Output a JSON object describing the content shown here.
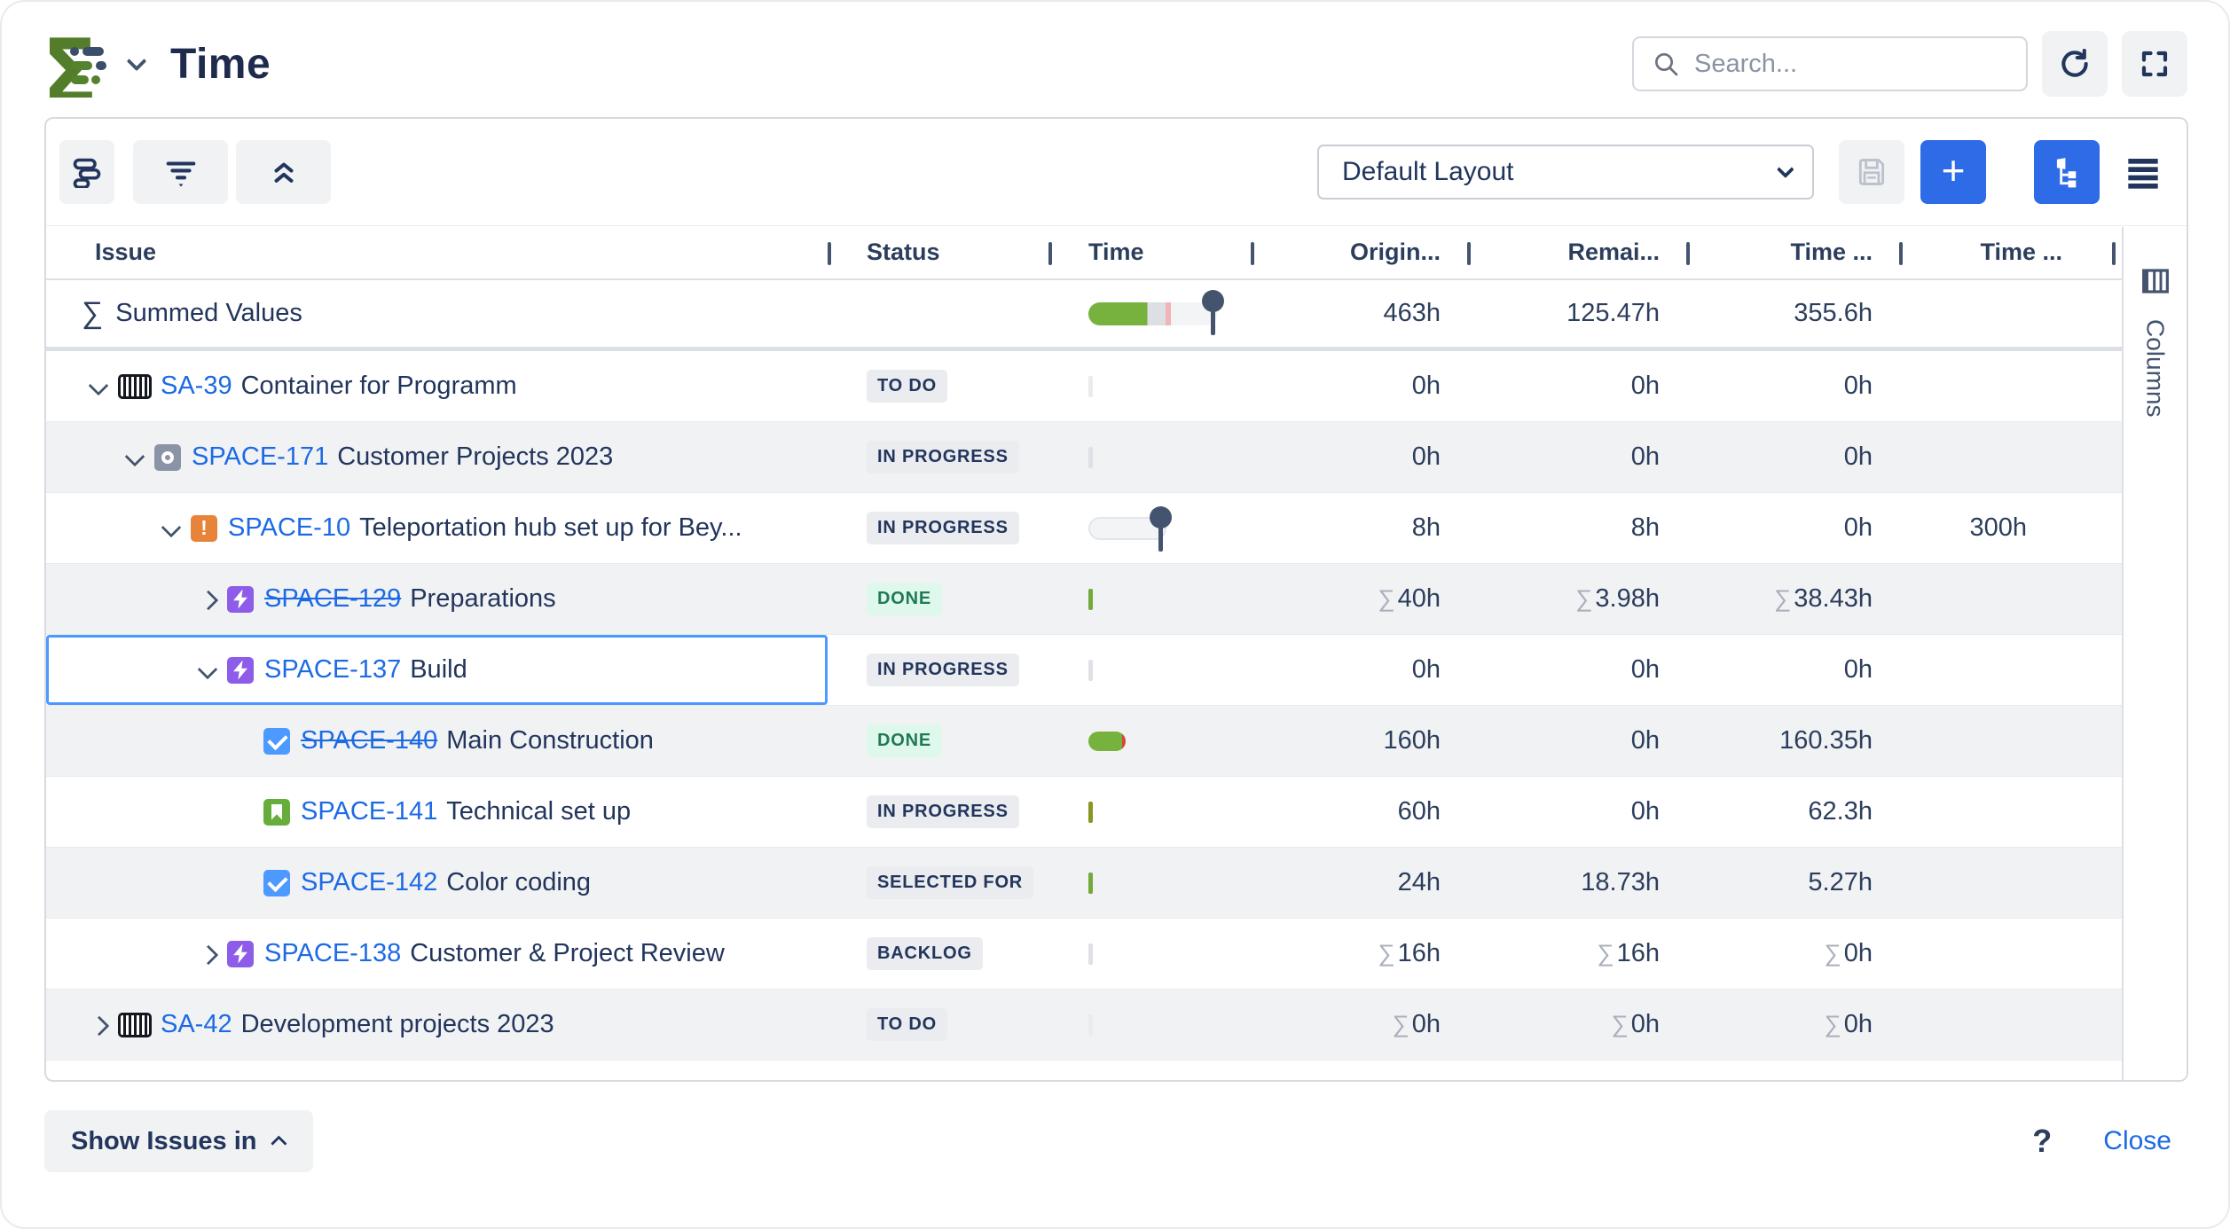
{
  "header": {
    "title": "Time",
    "search_placeholder": "Search..."
  },
  "toolbar": {
    "layout_selected": "Default Layout"
  },
  "table": {
    "columns": [
      "Issue",
      "Status",
      "Time",
      "Origin...",
      "Remai...",
      "Time ...",
      "Time ..."
    ],
    "summed_row": {
      "sigma": "∑",
      "label": "Summed Values",
      "values": [
        "463h",
        "125.47h",
        "355.6h",
        ""
      ]
    },
    "rows": [
      {
        "key": "SA-39",
        "summary": "Container for Programm",
        "level": 0,
        "chevron": "down",
        "type": "container",
        "struck": false,
        "status": {
          "label": "TO DO",
          "kind": "gray"
        },
        "bar": {
          "type": "sliver",
          "color": "#E9EBEE"
        },
        "zebra": false,
        "selected": false,
        "values": [
          {
            "sigma": false,
            "text": "0h"
          },
          {
            "sigma": false,
            "text": "0h"
          },
          {
            "sigma": false,
            "text": "0h"
          },
          {
            "sigma": false,
            "text": ""
          }
        ]
      },
      {
        "key": "SPACE-171",
        "summary": "Customer Projects 2023",
        "level": 1,
        "chevron": "down",
        "type": "program",
        "struck": false,
        "status": {
          "label": "IN PROGRESS",
          "kind": "gray"
        },
        "bar": {
          "type": "sliver",
          "color": "#DFE1E6"
        },
        "zebra": true,
        "selected": false,
        "values": [
          {
            "sigma": false,
            "text": "0h"
          },
          {
            "sigma": false,
            "text": "0h"
          },
          {
            "sigma": false,
            "text": "0h"
          },
          {
            "sigma": false,
            "text": ""
          }
        ]
      },
      {
        "key": "SPACE-10",
        "summary": "Teleportation hub set up for Bey...",
        "level": 2,
        "chevron": "down",
        "type": "incident",
        "struck": false,
        "status": {
          "label": "IN PROGRESS",
          "kind": "gray"
        },
        "bar": {
          "type": "pinbar"
        },
        "zebra": false,
        "selected": false,
        "values": [
          {
            "sigma": false,
            "text": "8h"
          },
          {
            "sigma": false,
            "text": "8h"
          },
          {
            "sigma": false,
            "text": "0h"
          },
          {
            "sigma": false,
            "text": "300h"
          }
        ]
      },
      {
        "key": "SPACE-129",
        "summary": "Preparations",
        "level": 3,
        "chevron": "right",
        "type": "bolt",
        "struck": true,
        "status": {
          "label": "DONE",
          "kind": "green"
        },
        "bar": {
          "type": "sliver",
          "color": "#76A83D"
        },
        "zebra": true,
        "selected": false,
        "values": [
          {
            "sigma": true,
            "text": "40h"
          },
          {
            "sigma": true,
            "text": "3.98h"
          },
          {
            "sigma": true,
            "text": "38.43h"
          },
          {
            "sigma": false,
            "text": ""
          }
        ]
      },
      {
        "key": "SPACE-137",
        "summary": "Build",
        "level": 3,
        "chevron": "down",
        "type": "bolt",
        "struck": false,
        "status": {
          "label": "IN PROGRESS",
          "kind": "gray"
        },
        "bar": {
          "type": "sliver",
          "color": "#DFE1E6"
        },
        "zebra": false,
        "selected": true,
        "values": [
          {
            "sigma": false,
            "text": "0h"
          },
          {
            "sigma": false,
            "text": "0h"
          },
          {
            "sigma": false,
            "text": "0h"
          },
          {
            "sigma": false,
            "text": ""
          }
        ]
      },
      {
        "key": "SPACE-140",
        "summary": "Main Construction",
        "level": 4,
        "chevron": "none",
        "type": "task",
        "struck": true,
        "status": {
          "label": "DONE",
          "kind": "green"
        },
        "bar": {
          "type": "pill"
        },
        "zebra": true,
        "selected": false,
        "values": [
          {
            "sigma": false,
            "text": "160h"
          },
          {
            "sigma": false,
            "text": "0h"
          },
          {
            "sigma": false,
            "text": "160.35h"
          },
          {
            "sigma": false,
            "text": ""
          }
        ]
      },
      {
        "key": "SPACE-141",
        "summary": "Technical set up",
        "level": 4,
        "chevron": "none",
        "type": "story",
        "struck": false,
        "status": {
          "label": "IN PROGRESS",
          "kind": "gray"
        },
        "bar": {
          "type": "sliver",
          "color": "#8A9623"
        },
        "zebra": false,
        "selected": false,
        "values": [
          {
            "sigma": false,
            "text": "60h"
          },
          {
            "sigma": false,
            "text": "0h"
          },
          {
            "sigma": false,
            "text": "62.3h"
          },
          {
            "sigma": false,
            "text": ""
          }
        ]
      },
      {
        "key": "SPACE-142",
        "summary": "Color coding",
        "level": 4,
        "chevron": "none",
        "type": "task",
        "struck": false,
        "status": {
          "label": "SELECTED FOR",
          "kind": "gray"
        },
        "bar": {
          "type": "sliver",
          "color": "#76A83D"
        },
        "zebra": true,
        "selected": false,
        "values": [
          {
            "sigma": false,
            "text": "24h"
          },
          {
            "sigma": false,
            "text": "18.73h"
          },
          {
            "sigma": false,
            "text": "5.27h"
          },
          {
            "sigma": false,
            "text": ""
          }
        ]
      },
      {
        "key": "SPACE-138",
        "summary": "Customer & Project Review",
        "level": 3,
        "chevron": "right",
        "type": "bolt",
        "struck": false,
        "status": {
          "label": "BACKLOG",
          "kind": "gray"
        },
        "bar": {
          "type": "sliver",
          "color": "#DFE1E6"
        },
        "zebra": false,
        "selected": false,
        "values": [
          {
            "sigma": true,
            "text": "16h"
          },
          {
            "sigma": true,
            "text": "16h"
          },
          {
            "sigma": true,
            "text": "0h"
          },
          {
            "sigma": false,
            "text": ""
          }
        ]
      },
      {
        "key": "SA-42",
        "summary": "Development projects 2023",
        "level": 0,
        "chevron": "right",
        "type": "container",
        "struck": false,
        "status": {
          "label": "TO DO",
          "kind": "gray"
        },
        "bar": {
          "type": "sliver",
          "color": "#E9EBEE"
        },
        "zebra": true,
        "selected": false,
        "values": [
          {
            "sigma": true,
            "text": "0h"
          },
          {
            "sigma": true,
            "text": "0h"
          },
          {
            "sigma": true,
            "text": "0h"
          },
          {
            "sigma": false,
            "text": ""
          }
        ]
      }
    ]
  },
  "columns_rail": {
    "label": "Columns"
  },
  "footer": {
    "show_issues": "Show Issues in",
    "help": "?",
    "close": "Close"
  },
  "icons": {
    "sigma": "∑"
  },
  "colors": {
    "accent_blue": "#2E6BE6",
    "link_blue": "#1D6AE5",
    "done_green": "#217A55",
    "selection_blue": "#4C9AFF",
    "bar_green": "#77B23F"
  }
}
